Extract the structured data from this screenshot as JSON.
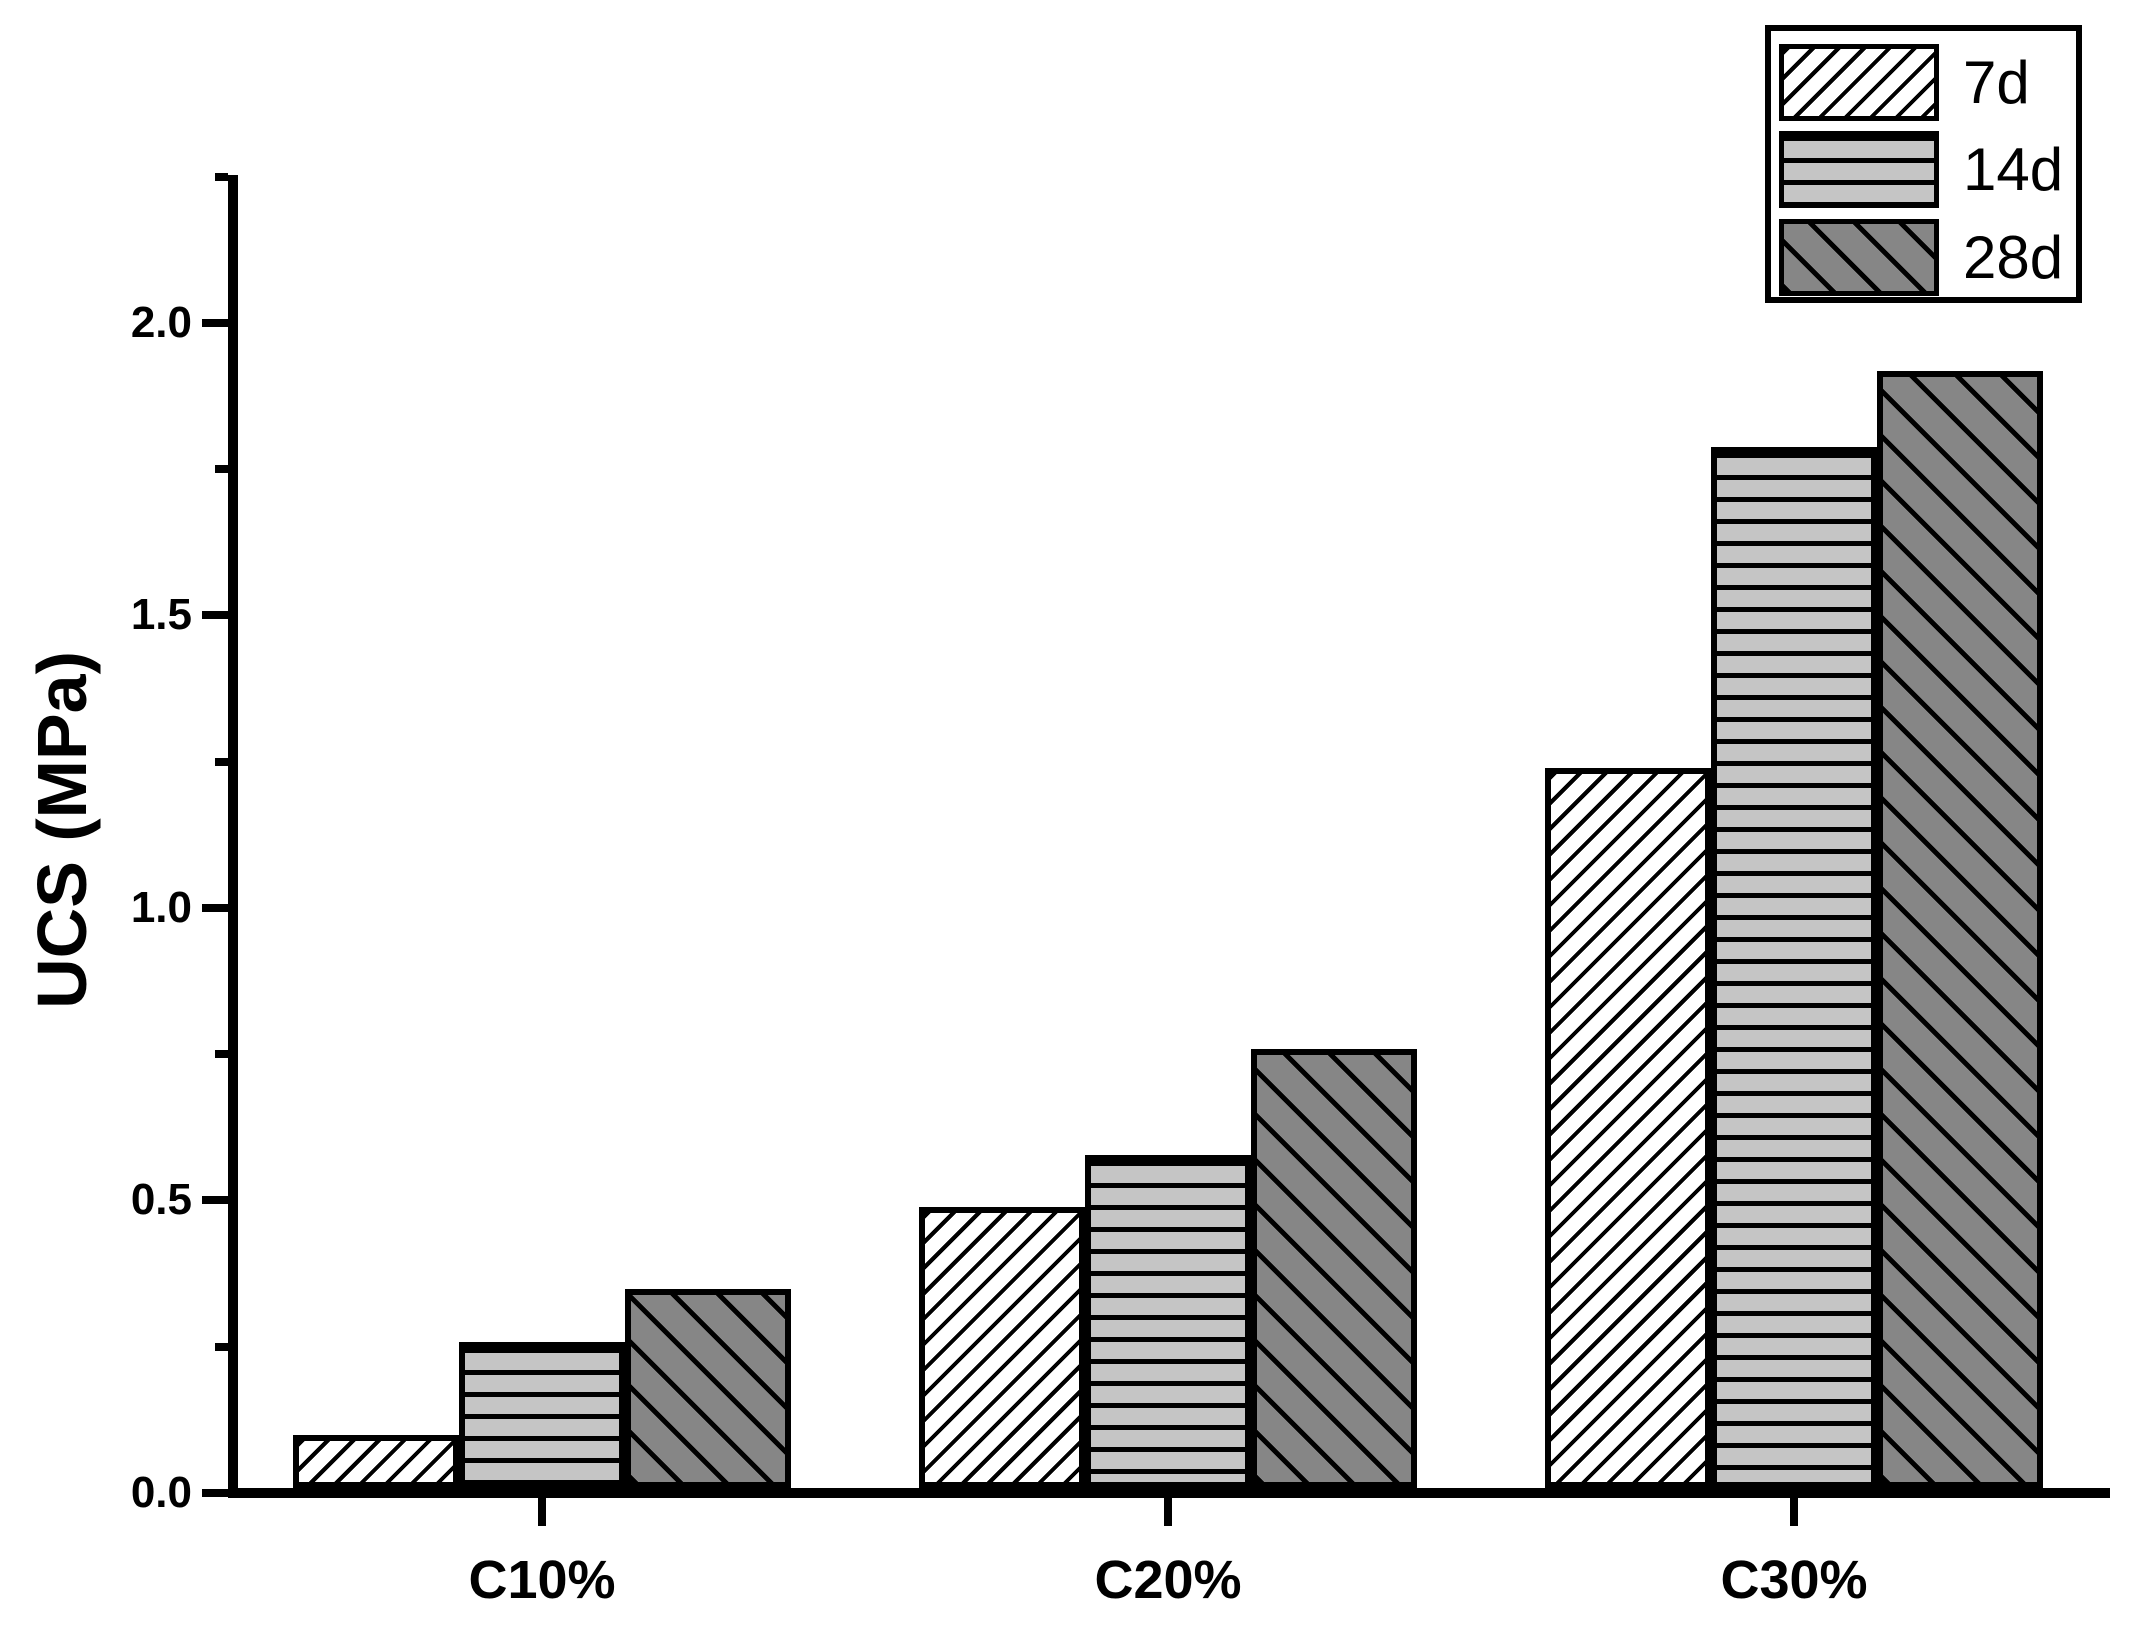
{
  "chart_data": {
    "type": "bar",
    "title": "",
    "xlabel": "",
    "ylabel": "UCS (MPa)",
    "categories": [
      "C10%",
      "C20%",
      "C30%"
    ],
    "series": [
      {
        "name": "7d",
        "values": [
          0.09,
          0.48,
          1.23
        ],
        "fill": "#ffffff",
        "hatch": "diagonal-up"
      },
      {
        "name": "14d",
        "values": [
          0.25,
          0.57,
          1.78
        ],
        "fill": "#c5c5c5",
        "hatch": "horizontal"
      },
      {
        "name": "28d",
        "values": [
          0.34,
          0.75,
          1.91
        ],
        "fill": "#868686",
        "hatch": "diagonal-down"
      }
    ],
    "ylim": [
      0,
      2.25
    ],
    "yticks": [
      "0.0",
      "0.5",
      "1.0",
      "1.5",
      "2.0"
    ],
    "minor_tick_step": 0.25,
    "grid": false,
    "legend": {
      "position": "top-right",
      "entries": [
        "7d",
        "14d",
        "28d"
      ]
    },
    "colors": {
      "axis": "#000000",
      "hatch_line": "#000000",
      "background": "#ffffff"
    }
  }
}
